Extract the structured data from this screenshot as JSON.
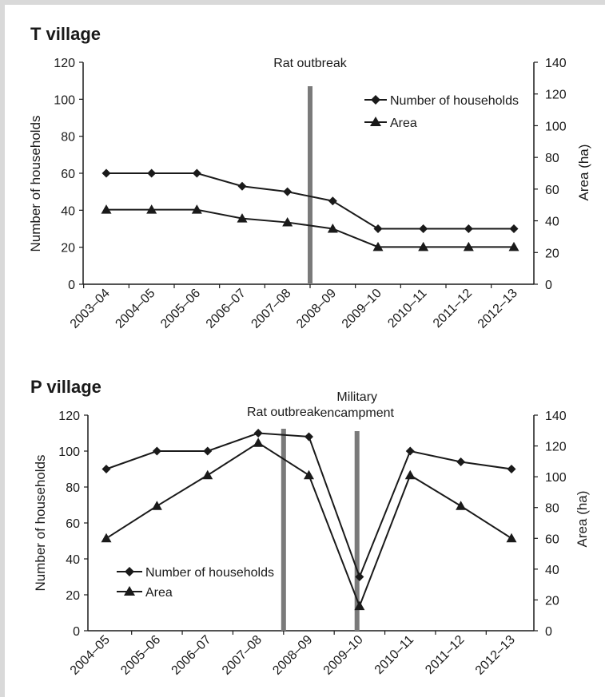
{
  "chart_data": [
    {
      "type": "line",
      "title": "T village",
      "categories": [
        "2003–04",
        "2004–05",
        "2005–06",
        "2006–07",
        "2007–08",
        "2008–09",
        "2009–10",
        "2010–11",
        "2011–12",
        "2012–13"
      ],
      "series": [
        {
          "name": "Number of households",
          "axis": "left",
          "marker": "diamond",
          "values": [
            60,
            60,
            60,
            53,
            50,
            45,
            30,
            30,
            30,
            30
          ]
        },
        {
          "name": "Area",
          "axis": "right",
          "marker": "triangle",
          "values": [
            47,
            47,
            47,
            41.5,
            39,
            35,
            23.5,
            23.5,
            23.5,
            23.5
          ]
        }
      ],
      "ylabel": "Number of households",
      "ylim": [
        0,
        120
      ],
      "yticks": [
        "0",
        "20",
        "40",
        "60",
        "80",
        "100",
        "120"
      ],
      "y2label": "Area (ha)",
      "y2lim": [
        0,
        140
      ],
      "y2ticks": [
        "0",
        "20",
        "40",
        "60",
        "80",
        "100",
        "120",
        "140"
      ],
      "annotations": [
        {
          "label": "Rat outbreak",
          "position": 4.5
        }
      ],
      "legend": "top-right",
      "grid": false
    },
    {
      "type": "line",
      "title": "P village",
      "categories": [
        "2004–05",
        "2005–06",
        "2006–07",
        "2007–08",
        "2008–09",
        "2009–10",
        "2010–11",
        "2011–12",
        "2012–13"
      ],
      "series": [
        {
          "name": "Number of households",
          "axis": "left",
          "marker": "diamond",
          "values": [
            90,
            100,
            100,
            110,
            108,
            30,
            100,
            94,
            90
          ]
        },
        {
          "name": "Area",
          "axis": "right",
          "marker": "triangle",
          "values": [
            60,
            81,
            101,
            122,
            101,
            16,
            101,
            81,
            60
          ]
        }
      ],
      "ylabel": "Number of households",
      "ylim": [
        0,
        120
      ],
      "yticks": [
        "0",
        "20",
        "40",
        "60",
        "80",
        "100",
        "120"
      ],
      "y2label": "Area (ha)",
      "y2lim": [
        0,
        140
      ],
      "y2ticks": [
        "0",
        "20",
        "40",
        "60",
        "80",
        "100",
        "120",
        "140"
      ],
      "annotations": [
        {
          "label": "Rat outbreak",
          "position": 3.5
        },
        {
          "label": "Military encampment",
          "position": 4.95
        }
      ],
      "legend": "bottom-left",
      "grid": false
    }
  ]
}
